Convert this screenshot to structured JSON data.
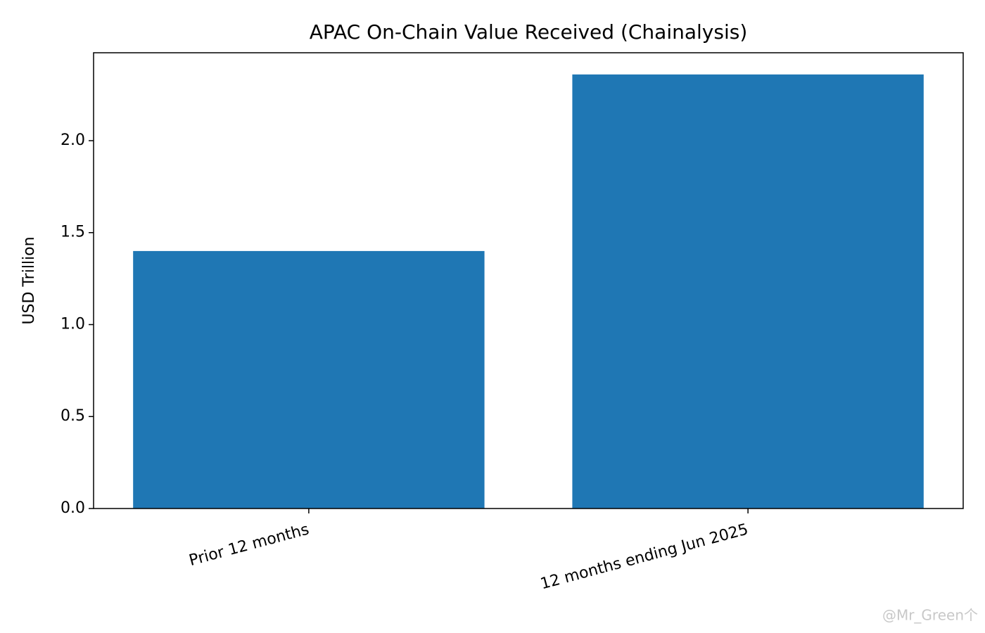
{
  "chart_data": {
    "type": "bar",
    "title": "APAC On-Chain Value Received (Chainalysis)",
    "y_label": "USD Trillion",
    "categories": [
      "Prior 12 months",
      "12 months ending Jun 2025"
    ],
    "values": [
      1.4,
      2.36
    ],
    "color": "#1f77b4",
    "ylim": [
      0,
      2.478
    ],
    "yticks": [
      {
        "value": 0,
        "label": "0.0"
      },
      {
        "value": 0.5,
        "label": "0.5"
      },
      {
        "value": 1,
        "label": "1.0"
      },
      {
        "value": 1.5,
        "label": "1.5"
      },
      {
        "value": 2,
        "label": "2.0"
      }
    ],
    "watermark": "@Mr_Green个"
  }
}
